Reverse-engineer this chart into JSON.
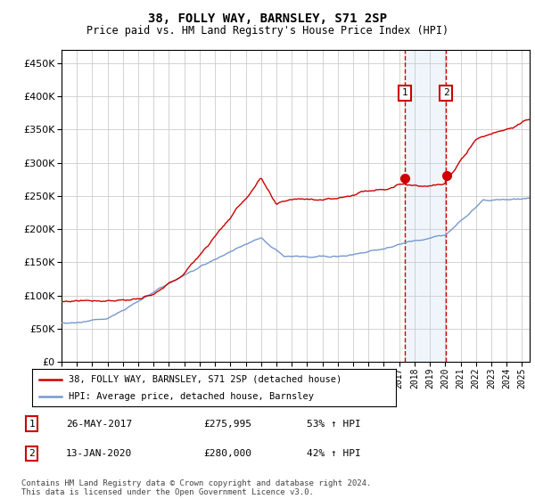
{
  "title": "38, FOLLY WAY, BARNSLEY, S71 2SP",
  "subtitle": "Price paid vs. HM Land Registry's House Price Index (HPI)",
  "ylim": [
    0,
    470000
  ],
  "yticks": [
    0,
    50000,
    100000,
    150000,
    200000,
    250000,
    300000,
    350000,
    400000,
    450000
  ],
  "xlim_start": 1995.0,
  "xlim_end": 2025.5,
  "red_line_color": "#cc0000",
  "blue_line_color": "#7799cc",
  "transaction1_date": 2017.38,
  "transaction1_price": 275995,
  "transaction2_date": 2020.04,
  "transaction2_price": 280000,
  "legend_label_red": "38, FOLLY WAY, BARNSLEY, S71 2SP (detached house)",
  "legend_label_blue": "HPI: Average price, detached house, Barnsley",
  "table_row1": [
    "1",
    "26-MAY-2017",
    "£275,995",
    "53% ↑ HPI"
  ],
  "table_row2": [
    "2",
    "13-JAN-2020",
    "£280,000",
    "42% ↑ HPI"
  ],
  "footnote": "Contains HM Land Registry data © Crown copyright and database right 2024.\nThis data is licensed under the Open Government Licence v3.0.",
  "background_color": "#ffffff",
  "grid_color": "#cccccc",
  "highlight_color": "#ddeeff",
  "fig_width": 6.0,
  "fig_height": 5.6,
  "dpi": 100
}
